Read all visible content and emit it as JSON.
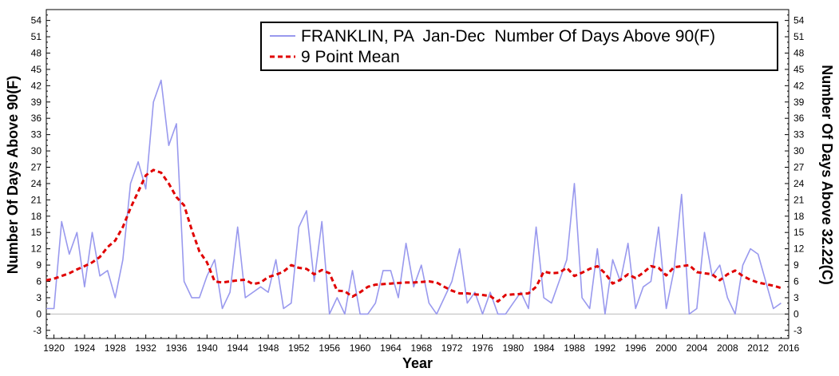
{
  "chart_data": {
    "type": "line",
    "xlabel": "Year",
    "ylabel": "Number Of Days Above 90(F)",
    "ylabel_right": "Number Of Days Above 32.22(C)",
    "xlim": [
      1919,
      2016
    ],
    "ylim": [
      -4.5,
      56
    ],
    "yticks": [
      -3,
      0,
      3,
      6,
      9,
      12,
      15,
      18,
      21,
      24,
      27,
      30,
      33,
      36,
      39,
      42,
      45,
      48,
      51,
      54
    ],
    "xticks": [
      1920,
      1924,
      1928,
      1932,
      1936,
      1940,
      1944,
      1948,
      1952,
      1956,
      1960,
      1964,
      1968,
      1972,
      1976,
      1980,
      1984,
      1988,
      1992,
      1996,
      2000,
      2004,
      2008,
      2012,
      2016
    ],
    "zero_line": true,
    "grid": false,
    "legend_position": "top-right",
    "series": [
      {
        "name": "FRANKLIN, PA  Jan-Dec  Number Of Days Above 90(F)",
        "style": "solid",
        "color": "#9999ee",
        "x": [
          1919,
          1920,
          1921,
          1922,
          1923,
          1924,
          1925,
          1926,
          1927,
          1928,
          1929,
          1930,
          1931,
          1932,
          1933,
          1934,
          1935,
          1936,
          1937,
          1938,
          1939,
          1940,
          1941,
          1942,
          1943,
          1944,
          1945,
          1946,
          1947,
          1948,
          1949,
          1950,
          1951,
          1952,
          1953,
          1954,
          1955,
          1956,
          1957,
          1958,
          1959,
          1960,
          1961,
          1962,
          1963,
          1964,
          1965,
          1966,
          1967,
          1968,
          1969,
          1970,
          1971,
          1972,
          1973,
          1974,
          1975,
          1976,
          1977,
          1978,
          1979,
          1980,
          1981,
          1982,
          1983,
          1984,
          1985,
          1986,
          1987,
          1988,
          1989,
          1990,
          1991,
          1992,
          1993,
          1994,
          1995,
          1996,
          1997,
          1998,
          1999,
          2000,
          2001,
          2002,
          2003,
          2004,
          2005,
          2006,
          2007,
          2008,
          2009,
          2010,
          2011,
          2012,
          2013,
          2014,
          2015
        ],
        "values": [
          1,
          1,
          17,
          11,
          15,
          5,
          15,
          7,
          8,
          3,
          10,
          24,
          28,
          23,
          39,
          43,
          31,
          35,
          6,
          3,
          3,
          7,
          10,
          1,
          4,
          16,
          3,
          4,
          5,
          4,
          10,
          1,
          2,
          16,
          19,
          6,
          17,
          0,
          3,
          0,
          8,
          0,
          0,
          2,
          8,
          8,
          3,
          13,
          5,
          9,
          2,
          0,
          3,
          6,
          12,
          2,
          4,
          0,
          4,
          0,
          0,
          2,
          4,
          1,
          16,
          3,
          2,
          6,
          10,
          24,
          3,
          1,
          12,
          0,
          10,
          6,
          13,
          1,
          5,
          6,
          16,
          1,
          8,
          22,
          0,
          1,
          15,
          7,
          9,
          3,
          0,
          9,
          12,
          11,
          6,
          1,
          2
        ]
      },
      {
        "name": "9 Point Mean",
        "style": "dashed",
        "color": "#e00000",
        "x": [
          1919,
          1920,
          1921,
          1922,
          1923,
          1924,
          1925,
          1926,
          1927,
          1928,
          1929,
          1930,
          1931,
          1932,
          1933,
          1934,
          1935,
          1936,
          1937,
          1938,
          1939,
          1940,
          1941,
          1942,
          1943,
          1944,
          1945,
          1946,
          1947,
          1948,
          1949,
          1950,
          1951,
          1952,
          1953,
          1954,
          1955,
          1956,
          1957,
          1958,
          1959,
          1960,
          1961,
          1962,
          1963,
          1964,
          1965,
          1966,
          1967,
          1968,
          1969,
          1970,
          1971,
          1972,
          1973,
          1974,
          1975,
          1976,
          1977,
          1978,
          1979,
          1980,
          1981,
          1982,
          1983,
          1984,
          1985,
          1986,
          1987,
          1988,
          1989,
          1990,
          1991,
          1992,
          1993,
          1994,
          1995,
          1996,
          1997,
          1998,
          1999,
          2000,
          2001,
          2002,
          2003,
          2004,
          2005,
          2006,
          2007,
          2008,
          2009,
          2010,
          2011,
          2012,
          2013,
          2014,
          2015
        ],
        "values": [
          6.2,
          6.5,
          7,
          7.5,
          8.2,
          8.8,
          9.5,
          10.5,
          12.3,
          13.5,
          16,
          19.5,
          22.5,
          25.5,
          26.5,
          26,
          24,
          21.5,
          20,
          15.5,
          11.5,
          9.5,
          6,
          5.8,
          6,
          6.2,
          6.3,
          5.5,
          5.8,
          6.8,
          7.2,
          7.8,
          9,
          8.5,
          8.3,
          7.3,
          8.1,
          7.5,
          4.3,
          4.2,
          3.2,
          4,
          5,
          5.4,
          5.5,
          5.6,
          5.7,
          5.8,
          5.8,
          5.9,
          6,
          5.8,
          5,
          4.3,
          3.8,
          3.8,
          3.6,
          3.5,
          3.3,
          2.3,
          3.5,
          3.6,
          3.7,
          3.8,
          5,
          7.8,
          7.5,
          7.6,
          8.5,
          7,
          7.6,
          8.3,
          8.8,
          7.5,
          5.6,
          6.3,
          7.3,
          6.6,
          7.6,
          8.8,
          8.5,
          7.1,
          8.6,
          8.8,
          9,
          7.7,
          7.5,
          7.3,
          6.2,
          7.3,
          8,
          7,
          6.3,
          5.8,
          5.5,
          5.2,
          4.8
        ]
      }
    ]
  }
}
